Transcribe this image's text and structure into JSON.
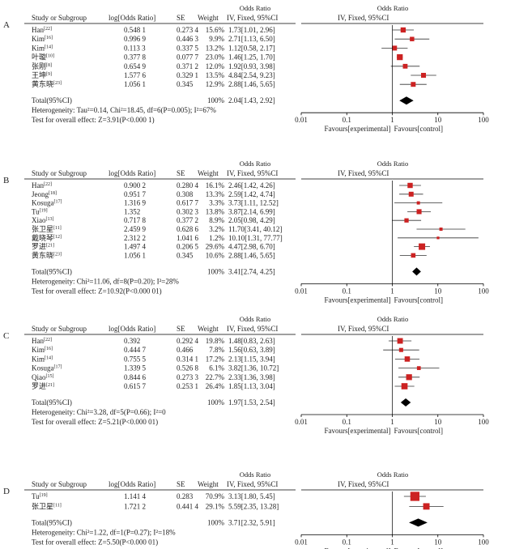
{
  "headers": {
    "study": "Study or Subgroup",
    "log_or": "log[Odds Ratio]",
    "se": "SE",
    "weight": "Weight",
    "or_group": "Odds Ratio",
    "or_method": "IV, Fixed, 95%CI"
  },
  "axis": {
    "ticks": [
      "0.01",
      "0.1",
      "1",
      "10",
      "100"
    ],
    "left_label": "Favours[experimental]",
    "right_label": "Favours[control]"
  },
  "colors": {
    "square": "#cc2222",
    "line": "#333333"
  },
  "chart_data": [
    {
      "type": "forest",
      "panel": "A",
      "scale": "log",
      "xlim": [
        0.01,
        100
      ],
      "studies": [
        {
          "name": "Han",
          "ref": "[22]",
          "log_or": "0.548 1",
          "se": "0.273 4",
          "weight": "15.6%",
          "ci_text": "1.73[1.01, 2.96]",
          "or": 1.73,
          "lo": 1.01,
          "hi": 2.96
        },
        {
          "name": "Kim",
          "ref": "[16]",
          "log_or": "0.996 9",
          "se": "0.446 3",
          "weight": "9.9%",
          "ci_text": "2.71[1.13, 6.50]",
          "or": 2.71,
          "lo": 1.13,
          "hi": 6.5
        },
        {
          "name": "Kim",
          "ref": "[14]",
          "log_or": "0.113 3",
          "se": "0.337 5",
          "weight": "13.2%",
          "ci_text": "1.12[0.58, 2.17]",
          "or": 1.12,
          "lo": 0.58,
          "hi": 2.17
        },
        {
          "name": "叶璇",
          "ref": "[10]",
          "log_or": "0.377 8",
          "se": "0.077 7",
          "weight": "23.0%",
          "ci_text": "1.46[1.25, 1.70]",
          "or": 1.46,
          "lo": 1.25,
          "hi": 1.7
        },
        {
          "name": "张刚",
          "ref": "[8]",
          "log_or": "0.654 9",
          "se": "0.371 2",
          "weight": "12.0%",
          "ci_text": "1.92[0.93, 3.98]",
          "or": 1.92,
          "lo": 0.93,
          "hi": 3.98
        },
        {
          "name": "王坤",
          "ref": "[9]",
          "log_or": "1.577 6",
          "se": "0.329 1",
          "weight": "13.5%",
          "ci_text": "4.84[2.54, 9.23]",
          "or": 4.84,
          "lo": 2.54,
          "hi": 9.23
        },
        {
          "name": "黄东晓",
          "ref": "[23]",
          "log_or": "1.056 1",
          "se": "0.345",
          "weight": "12.9%",
          "ci_text": "2.88[1.46, 5.65]",
          "or": 2.88,
          "lo": 1.46,
          "hi": 5.65
        }
      ],
      "total": {
        "label": "Total(95%CI)",
        "weight": "100%",
        "ci_text": "2.04[1.43, 2.92]",
        "or": 2.04,
        "lo": 1.43,
        "hi": 2.92
      },
      "heterogeneity": "Heterogeneity: Tau²=0.14, Chi²=18.45, df=6(P=0.005); I²=67%",
      "overall_test": "Test for overall effect: Z=3.91(P<0.000 1)"
    },
    {
      "type": "forest",
      "panel": "B",
      "scale": "log",
      "xlim": [
        0.01,
        100
      ],
      "studies": [
        {
          "name": "Han",
          "ref": "[22]",
          "log_or": "0.900 2",
          "se": "0.280 4",
          "weight": "16.1%",
          "ci_text": "2.46[1.42, 4.26]",
          "or": 2.46,
          "lo": 1.42,
          "hi": 4.26
        },
        {
          "name": "Jeong",
          "ref": "[18]",
          "log_or": "0.951 7",
          "se": "0.308",
          "weight": "13.3%",
          "ci_text": "2.59[1.42, 4.74]",
          "or": 2.59,
          "lo": 1.42,
          "hi": 4.74
        },
        {
          "name": "Kosuga",
          "ref": "[17]",
          "log_or": "1.316 9",
          "se": "0.617 7",
          "weight": "3.3%",
          "ci_text": "3.73[1.11, 12.52]",
          "or": 3.73,
          "lo": 1.11,
          "hi": 12.52
        },
        {
          "name": "Tu",
          "ref": "[19]",
          "log_or": "1.352",
          "se": "0.302 3",
          "weight": "13.8%",
          "ci_text": "3.87[2.14, 6.99]",
          "or": 3.87,
          "lo": 2.14,
          "hi": 6.99
        },
        {
          "name": "Xiao",
          "ref": "[13]",
          "log_or": "0.717 8",
          "se": "0.377 2",
          "weight": "8.9%",
          "ci_text": "2.05[0.98, 4.29]",
          "or": 2.05,
          "lo": 0.98,
          "hi": 4.29
        },
        {
          "name": "张卫星",
          "ref": "[11]",
          "log_or": "2.459 9",
          "se": "0.628 6",
          "weight": "3.2%",
          "ci_text": "11.70[3.41, 40.12]",
          "or": 11.7,
          "lo": 3.41,
          "hi": 40.12
        },
        {
          "name": "戴晓琴",
          "ref": "[12]",
          "log_or": "2.312 2",
          "se": "1.041 6",
          "weight": "1.2%",
          "ci_text": "10.10[1.31, 77.77]",
          "or": 10.1,
          "lo": 1.31,
          "hi": 77.77
        },
        {
          "name": "罗进",
          "ref": "[21]",
          "log_or": "1.497 4",
          "se": "0.206 5",
          "weight": "29.6%",
          "ci_text": "4.47[2.98, 6.70]",
          "or": 4.47,
          "lo": 2.98,
          "hi": 6.7
        },
        {
          "name": "黄东晓",
          "ref": "[23]",
          "log_or": "1.056 1",
          "se": "0.345",
          "weight": "10.6%",
          "ci_text": "2.88[1.46, 5.65]",
          "or": 2.88,
          "lo": 1.46,
          "hi": 5.65
        }
      ],
      "total": {
        "label": "Total(95%CI)",
        "weight": "100%",
        "ci_text": "3.41[2.74, 4.25]",
        "or": 3.41,
        "lo": 2.74,
        "hi": 4.25
      },
      "heterogeneity": "Heterogeneity: Chi²=11.06, df=8(P=0.20); I²=28%",
      "overall_test": "Test for overall effect: Z=10.92(P<0.000 01)"
    },
    {
      "type": "forest",
      "panel": "C",
      "scale": "log",
      "xlim": [
        0.01,
        100
      ],
      "studies": [
        {
          "name": "Han",
          "ref": "[22]",
          "log_or": "0.392",
          "se": "0.292 4",
          "weight": "19.8%",
          "ci_text": "1.48[0.83, 2.63]",
          "or": 1.48,
          "lo": 0.83,
          "hi": 2.63
        },
        {
          "name": "Kim",
          "ref": "[16]",
          "log_or": "0.444 7",
          "se": "0.466",
          "weight": "7.8%",
          "ci_text": "1.56[0.63, 3.89]",
          "or": 1.56,
          "lo": 0.63,
          "hi": 3.89
        },
        {
          "name": "Kim",
          "ref": "[14]",
          "log_or": "0.755 5",
          "se": "0.314 1",
          "weight": "17.2%",
          "ci_text": "2.13[1.15, 3.94]",
          "or": 2.13,
          "lo": 1.15,
          "hi": 3.94
        },
        {
          "name": "Kosuga",
          "ref": "[17]",
          "log_or": "1.339 5",
          "se": "0.526 8",
          "weight": "6.1%",
          "ci_text": "3.82[1.36, 10.72]",
          "or": 3.82,
          "lo": 1.36,
          "hi": 10.72
        },
        {
          "name": "Qiao",
          "ref": "[15]",
          "log_or": "0.844 6",
          "se": "0.273 3",
          "weight": "22.7%",
          "ci_text": "2.33[1.36, 3.98]",
          "or": 2.33,
          "lo": 1.36,
          "hi": 3.98
        },
        {
          "name": "罗进",
          "ref": "[21]",
          "log_or": "0.615 7",
          "se": "0.253 1",
          "weight": "26.4%",
          "ci_text": "1.85[1.13, 3.04]",
          "or": 1.85,
          "lo": 1.13,
          "hi": 3.04
        }
      ],
      "total": {
        "label": "Total(95%CI)",
        "weight": "100%",
        "ci_text": "1.97[1.53, 2.54]",
        "or": 1.97,
        "lo": 1.53,
        "hi": 2.54
      },
      "heterogeneity": "Heterogeneity: Chi²=3.28, df=5(P=0.66); I²=0",
      "overall_test": "Test for overall effect: Z=5.21(P<0.000 01)"
    },
    {
      "type": "forest",
      "panel": "D",
      "scale": "log",
      "xlim": [
        0.01,
        100
      ],
      "studies": [
        {
          "name": "Tu",
          "ref": "[19]",
          "log_or": "1.141 4",
          "se": "0.283",
          "weight": "70.9%",
          "ci_text": "3.13[1.80, 5.45]",
          "or": 3.13,
          "lo": 1.8,
          "hi": 5.45
        },
        {
          "name": "张卫星",
          "ref": "[11]",
          "log_or": "1.721 2",
          "se": "0.441 4",
          "weight": "29.1%",
          "ci_text": "5.59[2.35, 13.28]",
          "or": 5.59,
          "lo": 2.35,
          "hi": 13.28
        }
      ],
      "total": {
        "label": "Total(95%CI)",
        "weight": "100%",
        "ci_text": "3.71[2.32, 5.91]",
        "or": 3.71,
        "lo": 2.32,
        "hi": 5.91
      },
      "heterogeneity": "Heterogeneity: Chi²=1.22, df=1(P=0.27); I²=18%",
      "overall_test": "Test for overall effect: Z=5.50(P<0.000 01)"
    }
  ]
}
